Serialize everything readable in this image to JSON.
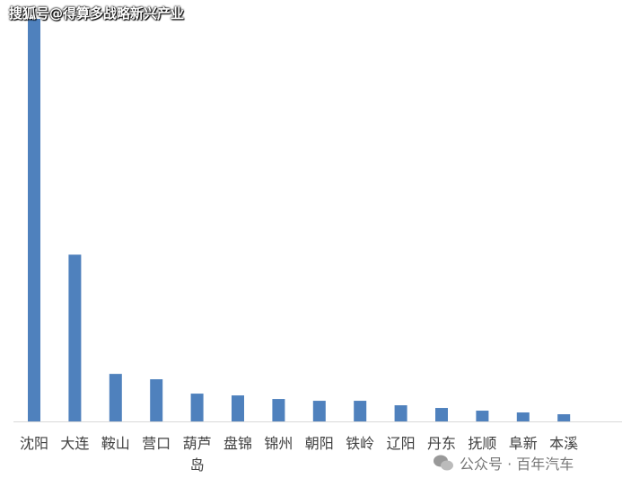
{
  "chart_data": {
    "type": "bar",
    "categories": [
      "沈阳",
      "大连",
      "鞍山",
      "营口",
      "葫芦岛",
      "盘锦",
      "锦州",
      "朝阳",
      "铁岭",
      "辽阳",
      "丹东",
      "抚顺",
      "阜新",
      "本溪"
    ],
    "values": [
      449,
      186,
      53,
      47,
      31,
      29,
      25,
      23,
      23,
      18,
      15,
      12,
      10,
      8
    ],
    "color": "#4f81bd",
    "ylim": [
      0,
      450
    ],
    "watermarks": [
      "搜狐号@得算多战略新兴产业",
      "公众号 · 百年汽车"
    ]
  }
}
